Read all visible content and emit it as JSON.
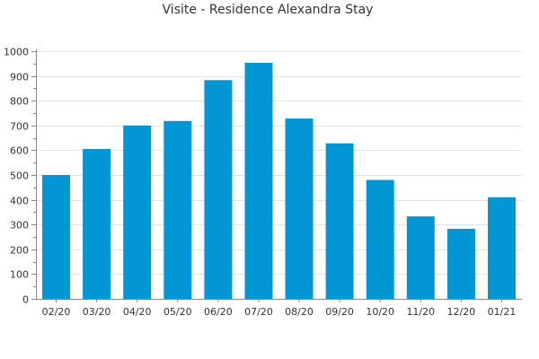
{
  "chart_data": {
    "type": "bar",
    "title": "Visite - Residence Alexandra Stay",
    "xlabel": "",
    "ylabel": "",
    "categories": [
      "02/20",
      "03/20",
      "04/20",
      "05/20",
      "06/20",
      "07/20",
      "08/20",
      "09/20",
      "10/20",
      "11/20",
      "12/20",
      "01/21"
    ],
    "values": [
      500,
      605,
      700,
      718,
      883,
      953,
      728,
      628,
      480,
      333,
      283,
      410
    ],
    "ylim": [
      0,
      1000
    ],
    "yticks": [
      0,
      100,
      200,
      300,
      400,
      500,
      600,
      700,
      800,
      900,
      1000
    ],
    "grid": true,
    "legend": "none",
    "colors": {
      "bar": "#0396d4",
      "grid": "#e3e3e3",
      "axis": "#888888",
      "text": "#333333"
    }
  }
}
